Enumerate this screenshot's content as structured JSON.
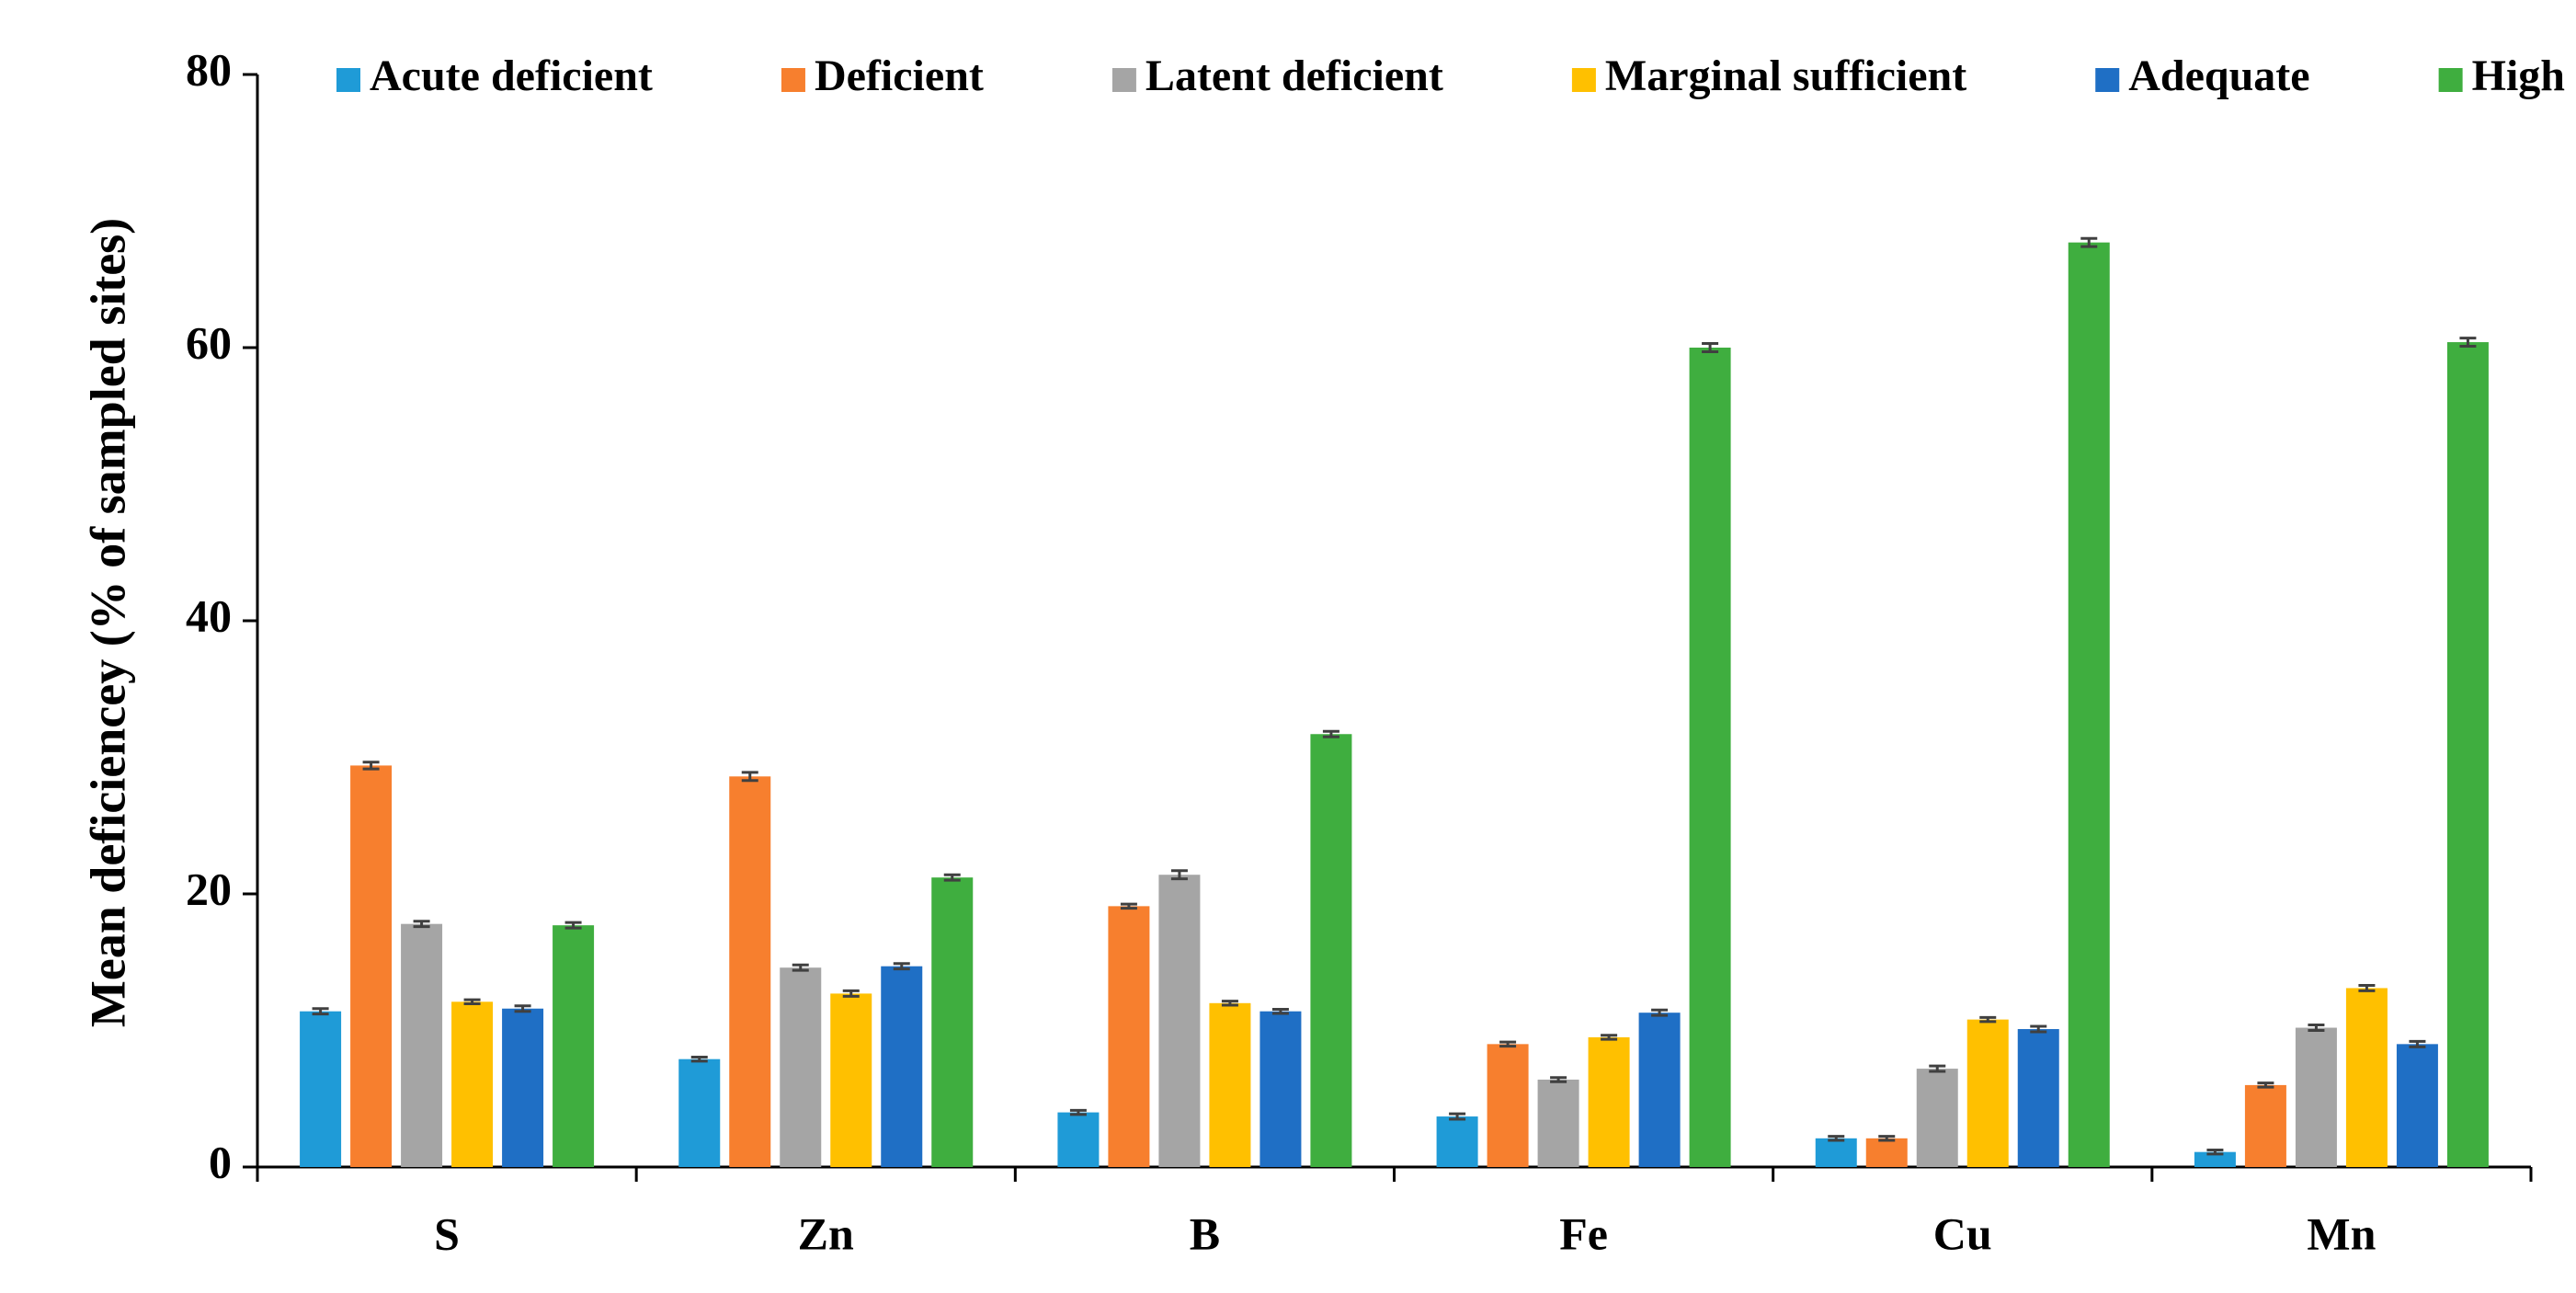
{
  "chart_data": {
    "type": "bar",
    "y_label": "Mean deficiencey (% of sampled sites)",
    "categories": [
      "S",
      "Zn",
      "B",
      "Fe",
      "Cu",
      "Mn"
    ],
    "series": [
      {
        "name": "Acute deficient",
        "color": "#1f9bd7",
        "values": [
          11.4,
          7.9,
          4.0,
          3.7,
          2.1,
          1.1
        ],
        "errors": [
          0.2,
          0.15,
          0.15,
          0.2,
          0.15,
          0.15
        ]
      },
      {
        "name": "Deficient",
        "color": "#f77f2e",
        "values": [
          29.4,
          28.6,
          19.1,
          9.0,
          2.1,
          6.0
        ],
        "errors": [
          0.25,
          0.3,
          0.15,
          0.15,
          0.15,
          0.15
        ]
      },
      {
        "name": "Latent deficient",
        "color": "#a5a5a5",
        "values": [
          17.8,
          14.6,
          21.4,
          6.4,
          7.2,
          10.2
        ],
        "errors": [
          0.2,
          0.2,
          0.3,
          0.15,
          0.2,
          0.2
        ]
      },
      {
        "name": "Marginal sufficient",
        "color": "#ffc000",
        "values": [
          12.1,
          12.7,
          12.0,
          9.5,
          10.8,
          13.1
        ],
        "errors": [
          0.15,
          0.2,
          0.15,
          0.15,
          0.15,
          0.2
        ]
      },
      {
        "name": "Adequate",
        "color": "#1f6fc5",
        "values": [
          11.6,
          14.7,
          11.4,
          11.3,
          10.1,
          9.0
        ],
        "errors": [
          0.2,
          0.2,
          0.15,
          0.2,
          0.2,
          0.2
        ]
      },
      {
        "name": "High",
        "color": "#3fae3f",
        "values": [
          17.7,
          21.2,
          31.7,
          60.0,
          67.7,
          60.4
        ],
        "errors": [
          0.2,
          0.2,
          0.2,
          0.3,
          0.3,
          0.3
        ]
      }
    ],
    "ylim": [
      0,
      80
    ],
    "yticks": [
      0,
      20,
      40,
      60,
      80
    ],
    "grid": false,
    "legend": "top"
  }
}
